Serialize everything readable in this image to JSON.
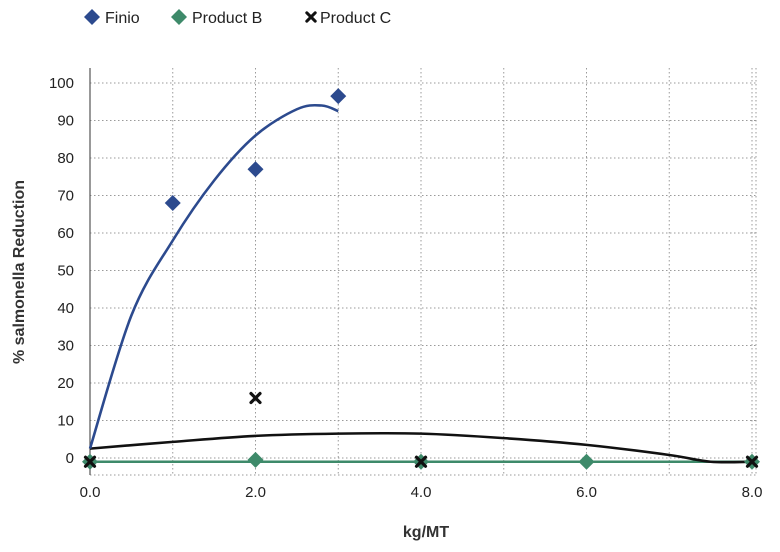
{
  "chart_data": {
    "type": "scatter",
    "xlabel": "kg/MT",
    "ylabel": "% salmonella Reduction",
    "xlim": [
      0,
      8
    ],
    "ylim": [
      0,
      100
    ],
    "x_ticks": [
      "0.0",
      "2.0",
      "4.0",
      "6.0",
      "8.0"
    ],
    "y_ticks": [
      "0",
      "10",
      "20",
      "30",
      "40",
      "50",
      "60",
      "70",
      "80",
      "90",
      "100"
    ],
    "grid": "dotted, both axes",
    "legend_position": "top-left",
    "series": [
      {
        "name": "Finio",
        "marker": "diamond",
        "color": "#2c4a8e",
        "points": [
          [
            1,
            68
          ],
          [
            2,
            77
          ],
          [
            3,
            96.5
          ]
        ],
        "trendline": [
          [
            0,
            2.5
          ],
          [
            0.5,
            38
          ],
          [
            1,
            58
          ],
          [
            1.5,
            74
          ],
          [
            2,
            86
          ],
          [
            2.5,
            93
          ],
          [
            2.8,
            94
          ],
          [
            3,
            92.5
          ]
        ]
      },
      {
        "name": "Product B",
        "marker": "diamond",
        "color": "#3e8a6a",
        "points": [
          [
            0,
            -1
          ],
          [
            2,
            -0.5
          ],
          [
            4,
            -1
          ],
          [
            6,
            -1
          ],
          [
            8,
            -1
          ]
        ],
        "trendline": [
          [
            0,
            -1
          ],
          [
            2,
            -1
          ],
          [
            4,
            -1
          ],
          [
            6,
            -1
          ],
          [
            8,
            -1
          ]
        ]
      },
      {
        "name": "Product C",
        "marker": "x",
        "color": "#111111",
        "points": [
          [
            0,
            -1
          ],
          [
            2,
            16
          ],
          [
            4,
            -1
          ],
          [
            8,
            -1
          ]
        ],
        "trendline": [
          [
            0,
            2.5
          ],
          [
            1,
            4.3
          ],
          [
            2,
            5.9
          ],
          [
            3,
            6.5
          ],
          [
            4,
            6.5
          ],
          [
            5,
            5.3
          ],
          [
            6,
            3.5
          ],
          [
            7,
            0.8
          ],
          [
            7.5,
            -1
          ],
          [
            8,
            -1
          ]
        ]
      }
    ]
  }
}
